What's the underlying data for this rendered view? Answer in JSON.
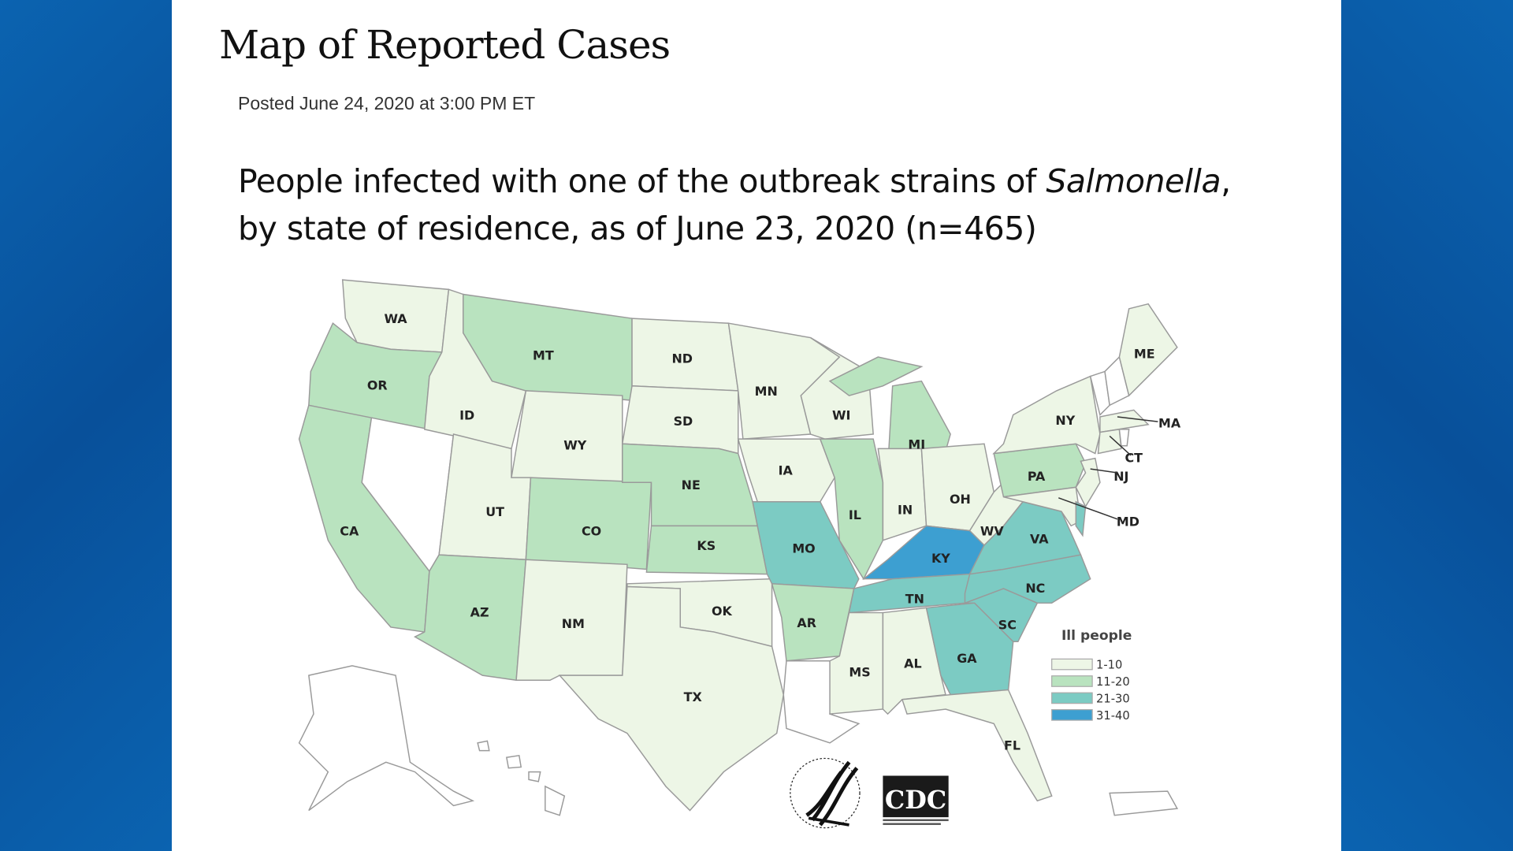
{
  "header": {
    "title": "Map of Reported Cases",
    "posted": "Posted June 24, 2020 at 3:00 PM ET"
  },
  "caption": {
    "line1_before": "People infected with one of the outbreak strains of ",
    "line1_italic": "Salmonella",
    "line1_after": ",",
    "line2": "by state of residence, as of June 23, 2020 (n=465)"
  },
  "legend": {
    "title": "Ill people",
    "items": [
      {
        "label": "1-10",
        "color": "#edf6e6"
      },
      {
        "label": "11-20",
        "color": "#b9e3bf"
      },
      {
        "label": "21-30",
        "color": "#7ccbc3"
      },
      {
        "label": "31-40",
        "color": "#3d9fd1"
      }
    ],
    "no_cases_color": "#ffffff"
  },
  "states": {
    "WA": "1-10",
    "OR": "11-20",
    "CA": "11-20",
    "NV": "none",
    "ID": "1-10",
    "MT": "11-20",
    "WY": "1-10",
    "UT": "1-10",
    "CO": "11-20",
    "AZ": "11-20",
    "NM": "1-10",
    "ND": "1-10",
    "SD": "1-10",
    "NE": "11-20",
    "KS": "11-20",
    "OK": "1-10",
    "TX": "1-10",
    "MN": "1-10",
    "IA": "1-10",
    "MO": "21-30",
    "AR": "11-20",
    "LA": "none",
    "WI": "1-10",
    "IL": "11-20",
    "MI": "11-20",
    "IN": "1-10",
    "OH": "1-10",
    "KY": "31-40",
    "TN": "21-30",
    "MS": "1-10",
    "AL": "1-10",
    "GA": "21-30",
    "FL": "1-10",
    "SC": "21-30",
    "NC": "21-30",
    "VA": "21-30",
    "WV": "1-10",
    "PA": "11-20",
    "NY": "1-10",
    "NJ": "1-10",
    "MD": "1-10",
    "DE": "21-30",
    "VT": "none",
    "NH": "none",
    "ME": "1-10",
    "MA": "1-10",
    "CT": "1-10",
    "RI": "none",
    "AK": "none",
    "HI": "none",
    "PR": "none"
  },
  "logos": {
    "hhs": "DEPARTMENT OF HEALTH & HUMAN SERVICES USA",
    "cdc": "CDC",
    "cdc_sub": "CENTERS FOR DISEASE CONTROL AND PREVENTION"
  }
}
